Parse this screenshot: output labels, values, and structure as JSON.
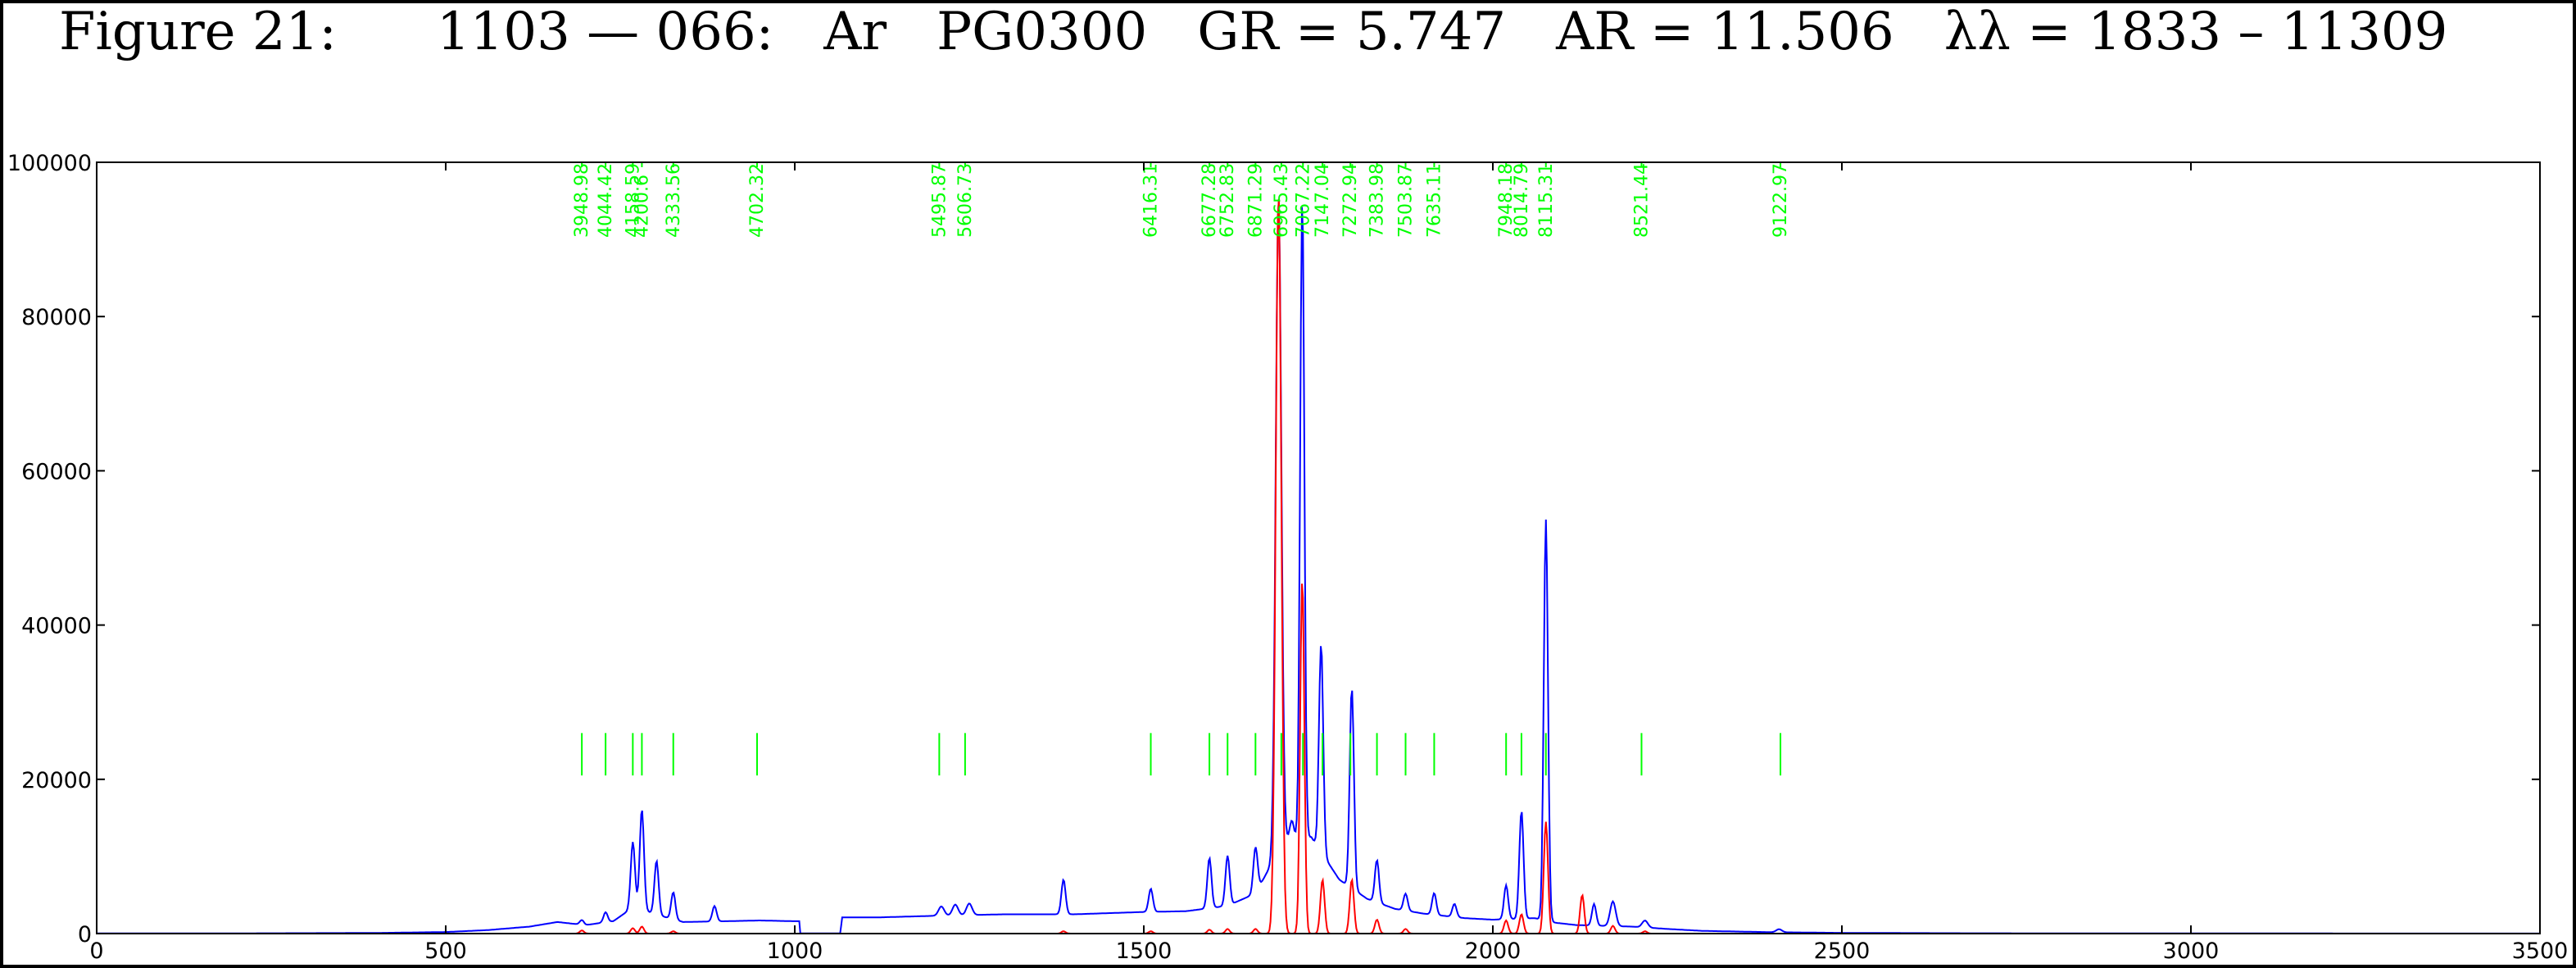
{
  "title": "Figure 21:      1103 — 066:   Ar   PG0300   GR = 5.747   AR = 11.506   λλ = 1833 – 11309",
  "chart_data": {
    "type": "line",
    "xlim": [
      0,
      3500
    ],
    "ylim": [
      0,
      100000
    ],
    "x_ticks": [
      0,
      500,
      1000,
      1500,
      2000,
      2500,
      3000,
      3500
    ],
    "x_tick_labels": [
      "0",
      "500",
      "1000",
      "1500",
      "2000",
      "2500",
      "3000",
      "3500"
    ],
    "y_ticks": [
      0,
      20000,
      40000,
      60000,
      80000,
      100000
    ],
    "y_tick_labels": [
      "0",
      "20000",
      "40000",
      "60000",
      "80000",
      "100000"
    ],
    "grid": false,
    "colors": {
      "blue": "#0000ff",
      "red": "#ff0000",
      "green": "#00ff00"
    },
    "line_marks": [
      {
        "x": 695,
        "label": "3948.98"
      },
      {
        "x": 729,
        "label": "4044.42"
      },
      {
        "x": 768,
        "label": "4158.59"
      },
      {
        "x": 781,
        "label": "4200.6"
      },
      {
        "x": 826,
        "label": "4333.56"
      },
      {
        "x": 946,
        "label": "4702.32"
      },
      {
        "x": 1207,
        "label": "5495.87"
      },
      {
        "x": 1244,
        "label": "5606.73"
      },
      {
        "x": 1510,
        "label": "6416.31"
      },
      {
        "x": 1594,
        "label": "6677.28"
      },
      {
        "x": 1620,
        "label": "6752.83"
      },
      {
        "x": 1660,
        "label": "6871.29"
      },
      {
        "x": 1697,
        "label": "6965.43"
      },
      {
        "x": 1728,
        "label": "7067.22"
      },
      {
        "x": 1756,
        "label": "7147.04"
      },
      {
        "x": 1796,
        "label": "7272.94"
      },
      {
        "x": 1834,
        "label": "7383.98"
      },
      {
        "x": 1875,
        "label": "7503.87"
      },
      {
        "x": 1916,
        "label": "7635.11"
      },
      {
        "x": 2019,
        "label": "7948.18"
      },
      {
        "x": 2041,
        "label": "8014.79"
      },
      {
        "x": 2076,
        "label": "8115.31"
      },
      {
        "x": 2213,
        "label": "8521.44"
      },
      {
        "x": 2412,
        "label": "9122.97"
      }
    ],
    "line_mark_y_range": [
      20500,
      26000
    ],
    "series": [
      {
        "color": "#0000ff",
        "baseline": [
          [
            0,
            20
          ],
          [
            200,
            30
          ],
          [
            400,
            80
          ],
          [
            500,
            200
          ],
          [
            560,
            450
          ],
          [
            620,
            900
          ],
          [
            660,
            1500
          ],
          [
            700,
            1100
          ],
          [
            740,
            1600
          ],
          [
            770,
            3500
          ],
          [
            800,
            2500
          ],
          [
            840,
            1500
          ],
          [
            900,
            1600
          ],
          [
            950,
            1700
          ],
          [
            1000,
            1600
          ],
          [
            1007,
            1600
          ],
          [
            1008,
            30
          ],
          [
            1066,
            30
          ],
          [
            1067,
            2100
          ],
          [
            1120,
            2100
          ],
          [
            1200,
            2300
          ],
          [
            1300,
            2500
          ],
          [
            1400,
            2500
          ],
          [
            1500,
            2800
          ],
          [
            1560,
            2900
          ],
          [
            1620,
            3600
          ],
          [
            1660,
            5200
          ],
          [
            1680,
            8500
          ],
          [
            1700,
            12000
          ],
          [
            1740,
            12500
          ],
          [
            1780,
            7000
          ],
          [
            1820,
            4500
          ],
          [
            1860,
            3200
          ],
          [
            1900,
            2600
          ],
          [
            1960,
            2000
          ],
          [
            2000,
            1800
          ],
          [
            2060,
            2000
          ],
          [
            2090,
            1400
          ],
          [
            2120,
            1100
          ],
          [
            2200,
            900
          ],
          [
            2250,
            600
          ],
          [
            2300,
            350
          ],
          [
            2400,
            180
          ],
          [
            2500,
            90
          ],
          [
            2700,
            40
          ],
          [
            3000,
            20
          ],
          [
            3500,
            10
          ]
        ],
        "peaks": [
          [
            695,
            600,
            3
          ],
          [
            729,
            1300,
            3
          ],
          [
            768,
            8500,
            3
          ],
          [
            781,
            13000,
            3
          ],
          [
            802,
            7000,
            3
          ],
          [
            826,
            3500,
            3
          ],
          [
            885,
            2000,
            3
          ],
          [
            1210,
            1200,
            4
          ],
          [
            1230,
            1400,
            4
          ],
          [
            1250,
            1500,
            4
          ],
          [
            1385,
            4500,
            3
          ],
          [
            1510,
            3000,
            3
          ],
          [
            1594,
            6500,
            3
          ],
          [
            1620,
            6500,
            3
          ],
          [
            1660,
            6000,
            3
          ],
          [
            1693,
            85000,
            4
          ],
          [
            1712,
            2500,
            3
          ],
          [
            1727,
            83000,
            3
          ],
          [
            1754,
            27000,
            3
          ],
          [
            1798,
            26000,
            3
          ],
          [
            1834,
            5500,
            3
          ],
          [
            1875,
            2200,
            3
          ],
          [
            1916,
            2800,
            3
          ],
          [
            1945,
            1700,
            3
          ],
          [
            2019,
            4400,
            3
          ],
          [
            2041,
            14000,
            3
          ],
          [
            2076,
            52000,
            3
          ],
          [
            2145,
            2800,
            3
          ],
          [
            2172,
            3200,
            4
          ],
          [
            2218,
            900,
            4
          ],
          [
            2410,
            400,
            4
          ]
        ]
      },
      {
        "color": "#ff0000",
        "baseline": [
          [
            0,
            0
          ],
          [
            3500,
            0
          ]
        ],
        "peaks": [
          [
            695,
            400,
            3
          ],
          [
            768,
            700,
            3
          ],
          [
            781,
            900,
            3
          ],
          [
            826,
            300,
            3
          ],
          [
            1385,
            300,
            3
          ],
          [
            1510,
            300,
            3
          ],
          [
            1594,
            500,
            3
          ],
          [
            1620,
            600,
            3
          ],
          [
            1660,
            600,
            3
          ],
          [
            1693,
            96000,
            4
          ],
          [
            1727,
            46000,
            3
          ],
          [
            1756,
            7000,
            3
          ],
          [
            1798,
            7000,
            3
          ],
          [
            1834,
            1800,
            3
          ],
          [
            1875,
            600,
            3
          ],
          [
            2019,
            1700,
            3
          ],
          [
            2041,
            2500,
            3
          ],
          [
            2076,
            14500,
            3
          ],
          [
            2128,
            5000,
            3
          ],
          [
            2172,
            1000,
            3
          ],
          [
            2218,
            300,
            3
          ]
        ]
      }
    ]
  }
}
